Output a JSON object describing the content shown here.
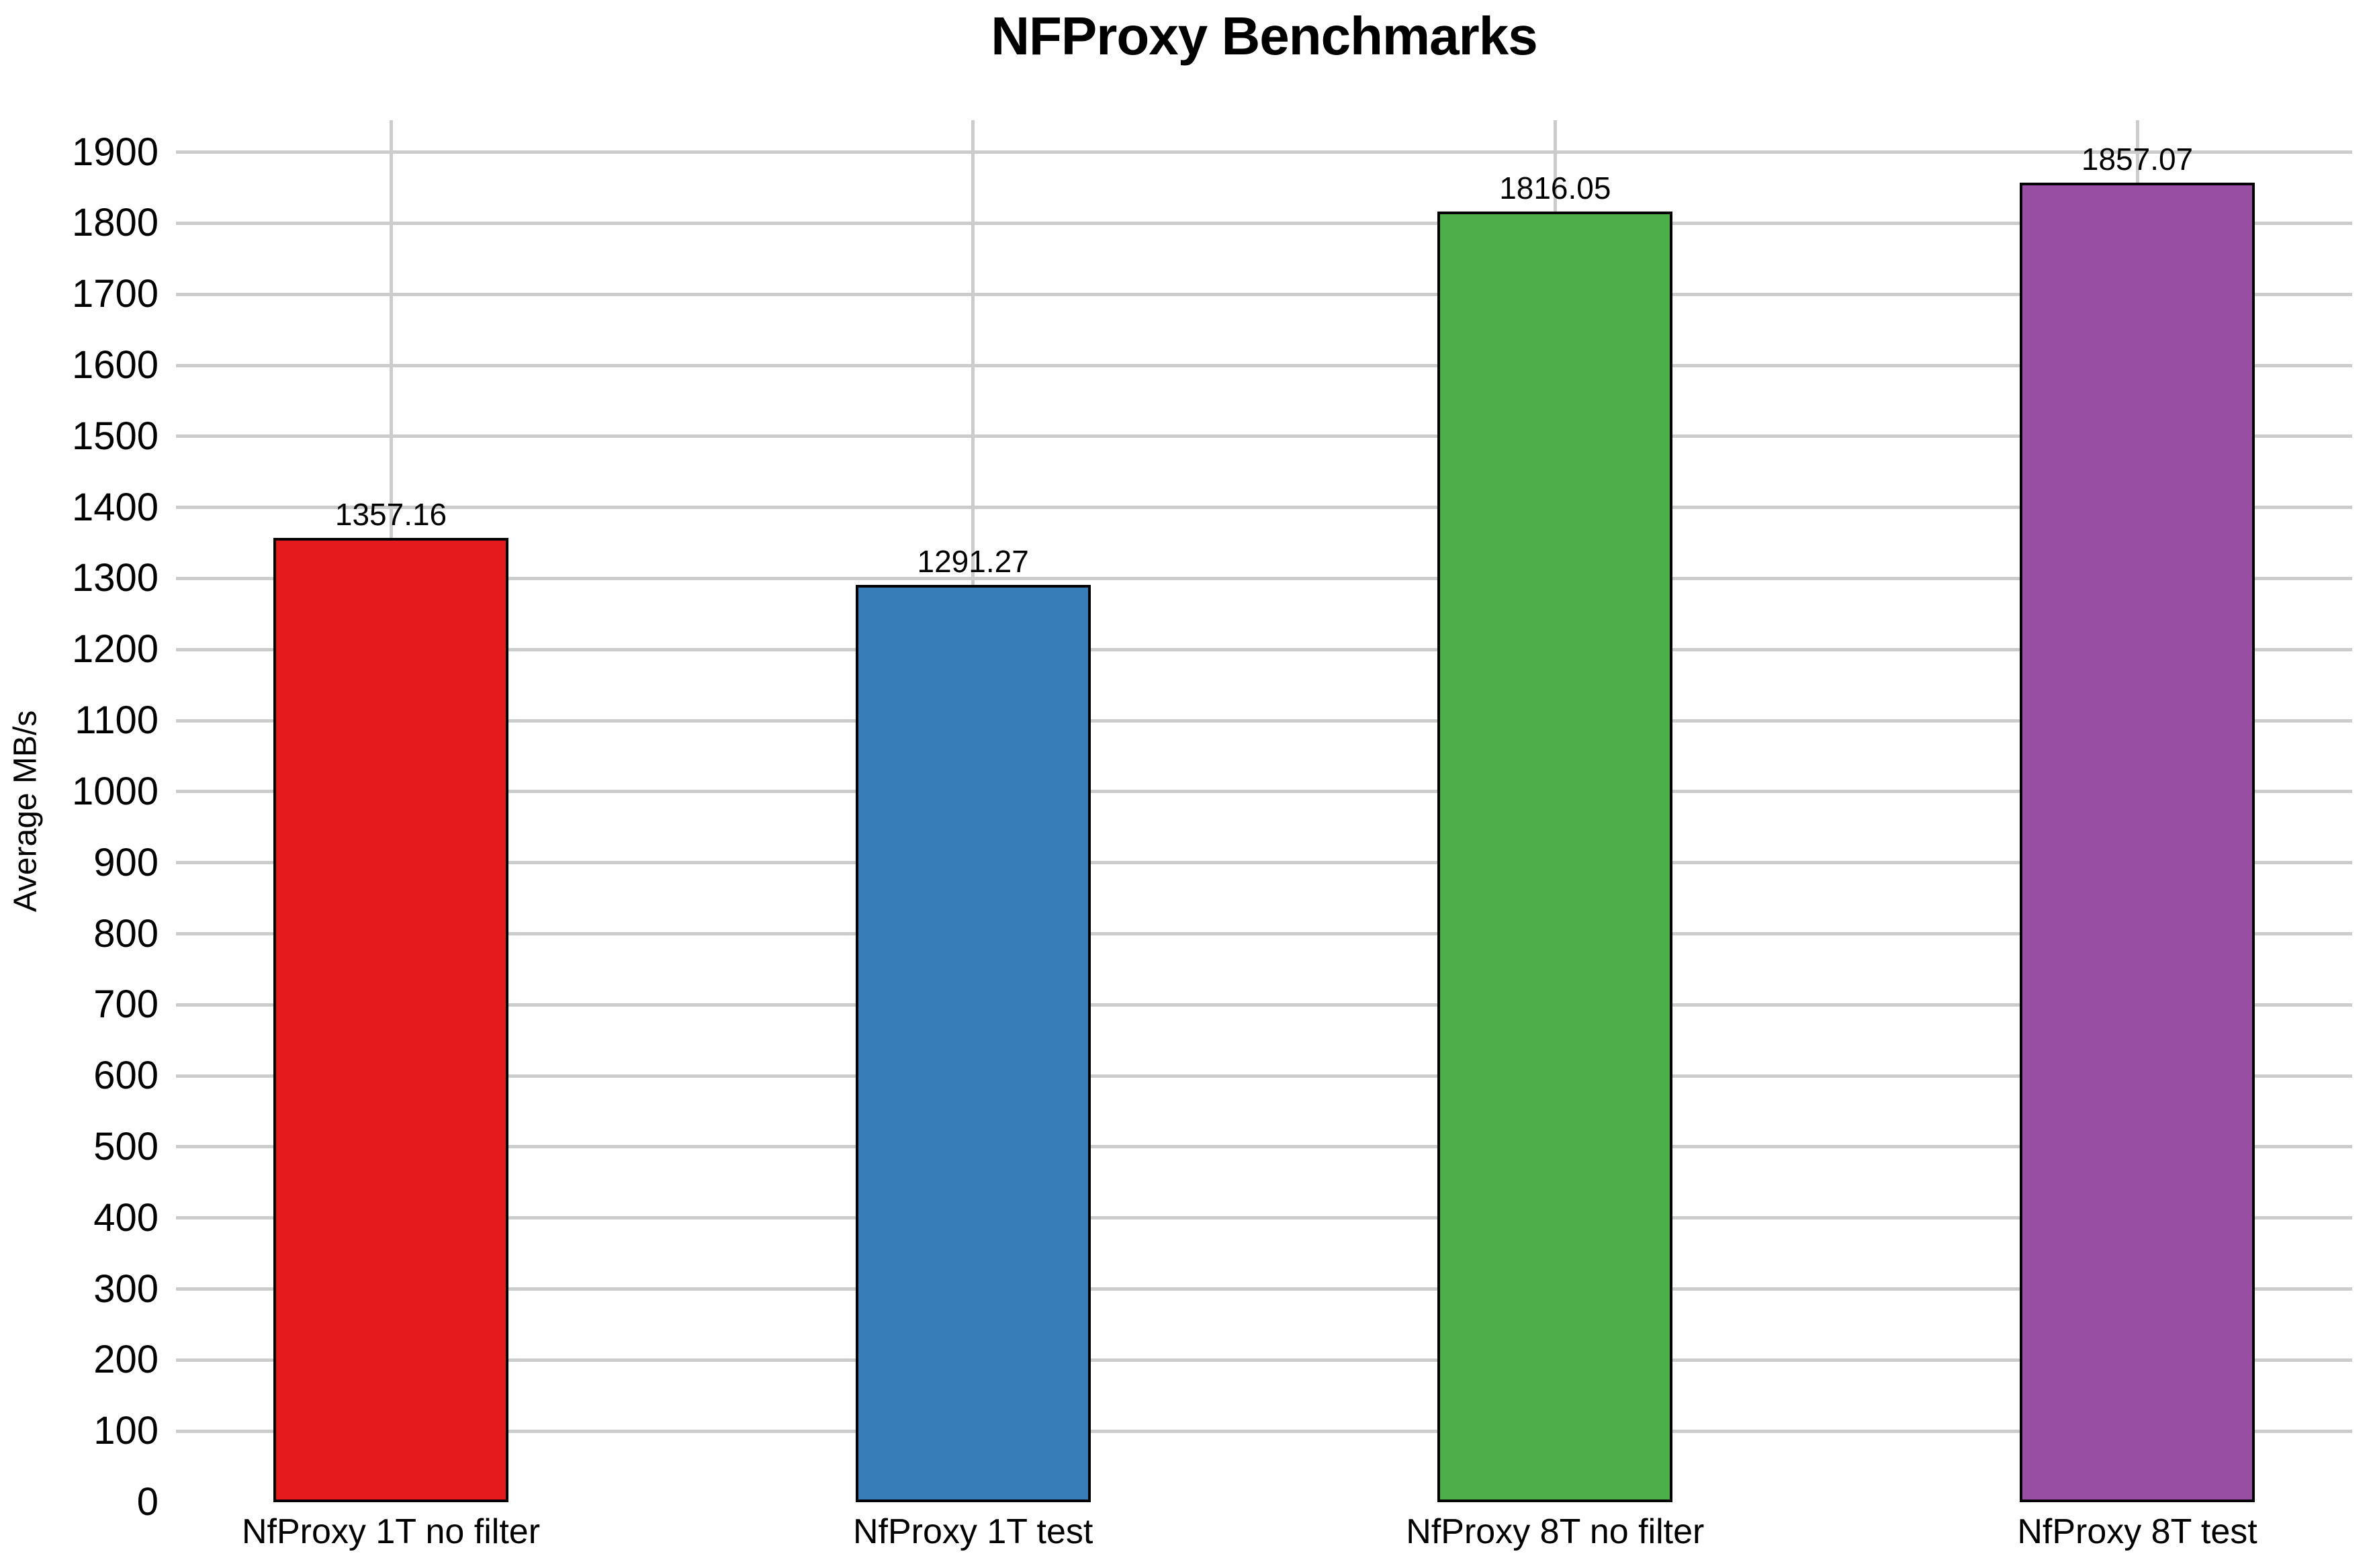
{
  "title": "NFProxy Benchmarks",
  "chart_data": {
    "type": "bar",
    "title": "NFProxy Benchmarks",
    "xlabel": "",
    "ylabel": "Average MB/s",
    "categories": [
      "NfProxy 1T no filter",
      "NfProxy 1T test",
      "NfProxy 8T no filter",
      "NfProxy 8T test"
    ],
    "values": [
      1357.16,
      1291.27,
      1816.05,
      1857.07
    ],
    "value_labels": [
      "1357.16",
      "1291.27",
      "1816.05",
      "1857.07"
    ],
    "bar_colors": [
      "#e41a1c",
      "#377eb8",
      "#4daf4a",
      "#984ea3"
    ],
    "bar_edge_color": "#000000",
    "ylim": [
      0,
      1945
    ],
    "yticks": [
      0,
      100,
      200,
      300,
      400,
      500,
      600,
      700,
      800,
      900,
      1000,
      1100,
      1200,
      1300,
      1400,
      1500,
      1600,
      1700,
      1800,
      1900
    ],
    "grid": true,
    "gridline_color": "#cccccc",
    "legend_position": "none",
    "text_color": "#000000",
    "background_color": "#ffffff"
  }
}
